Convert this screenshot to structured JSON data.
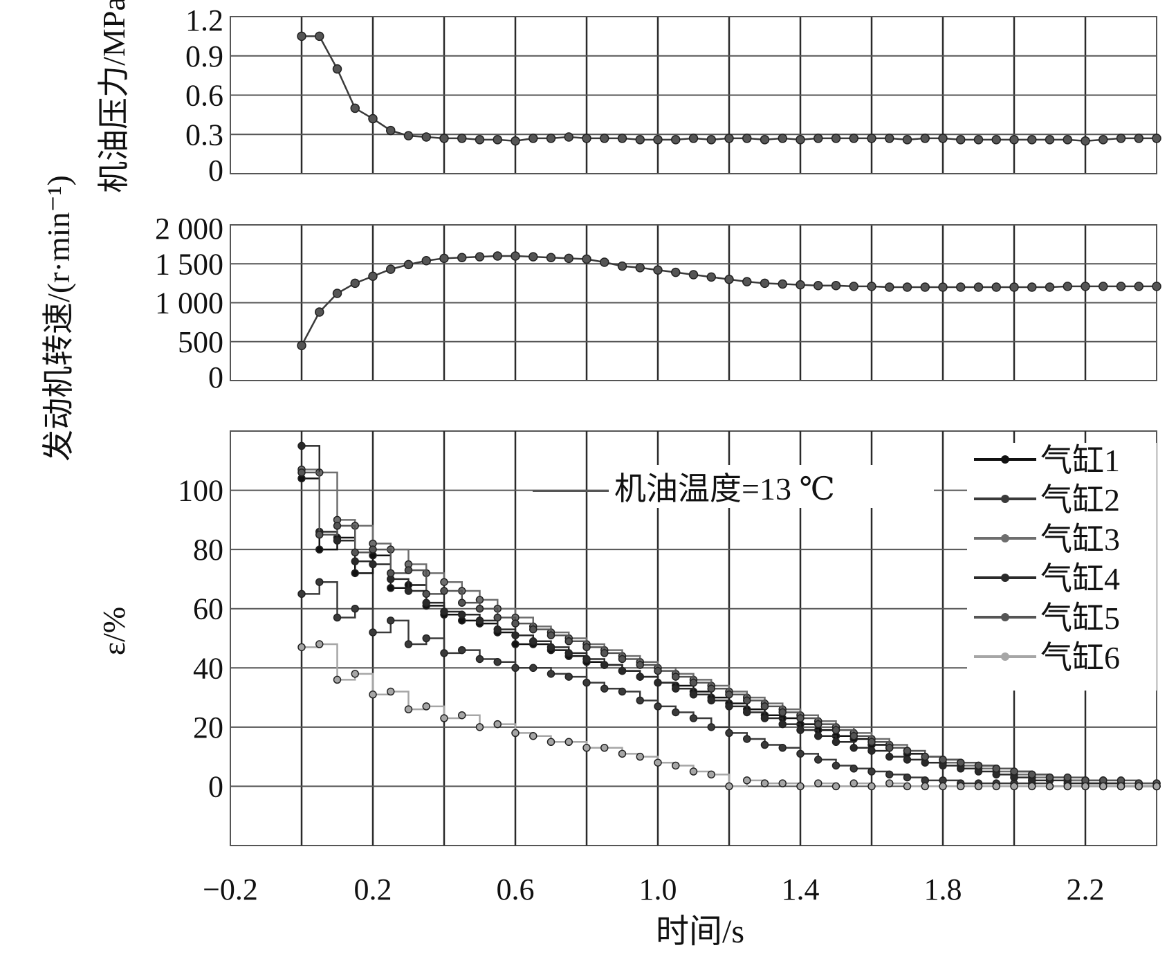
{
  "chart_data": [
    {
      "type": "line",
      "ylabel": "机油压力/MPa",
      "ylim": [
        0,
        1.2
      ],
      "yticks": [
        "0",
        "0.3",
        "0.6",
        "0.9",
        "1.2"
      ],
      "ytick_values": [
        0,
        0.3,
        0.6,
        0.9,
        1.2
      ],
      "xlim": [
        -0.2,
        2.4
      ],
      "grid": true,
      "series": [
        {
          "x": [
            0.0,
            0.05,
            0.1,
            0.15,
            0.2,
            0.25,
            0.3,
            0.35,
            0.4,
            0.45,
            0.5,
            0.55,
            0.6,
            0.65,
            0.7,
            0.75,
            0.8,
            0.85,
            0.9,
            0.95,
            1.0,
            1.05,
            1.1,
            1.15,
            1.2,
            1.25,
            1.3,
            1.35,
            1.4,
            1.45,
            1.5,
            1.55,
            1.6,
            1.65,
            1.7,
            1.75,
            1.8,
            1.85,
            1.9,
            1.95,
            2.0,
            2.05,
            2.1,
            2.15,
            2.2,
            2.25,
            2.3,
            2.35,
            2.4
          ],
          "y": [
            1.05,
            1.05,
            0.8,
            0.5,
            0.42,
            0.33,
            0.29,
            0.28,
            0.27,
            0.27,
            0.26,
            0.26,
            0.25,
            0.27,
            0.27,
            0.28,
            0.27,
            0.27,
            0.27,
            0.26,
            0.26,
            0.26,
            0.27,
            0.26,
            0.27,
            0.27,
            0.26,
            0.27,
            0.26,
            0.27,
            0.27,
            0.27,
            0.27,
            0.27,
            0.26,
            0.27,
            0.27,
            0.26,
            0.26,
            0.26,
            0.26,
            0.26,
            0.26,
            0.26,
            0.25,
            0.26,
            0.27,
            0.27,
            0.27
          ]
        }
      ]
    },
    {
      "type": "line",
      "ylabel": "发动机转速/(r·min⁻¹)",
      "ylim": [
        0,
        2000
      ],
      "yticks": [
        "0",
        "500",
        "1 000",
        "1 500",
        "2 000"
      ],
      "ytick_values": [
        0,
        500,
        1000,
        1500,
        2000
      ],
      "xlim": [
        -0.2,
        2.4
      ],
      "grid": true,
      "series": [
        {
          "x": [
            0.0,
            0.05,
            0.1,
            0.15,
            0.2,
            0.25,
            0.3,
            0.35,
            0.4,
            0.45,
            0.5,
            0.55,
            0.6,
            0.65,
            0.7,
            0.75,
            0.8,
            0.85,
            0.9,
            0.95,
            1.0,
            1.05,
            1.1,
            1.15,
            1.2,
            1.25,
            1.3,
            1.35,
            1.4,
            1.45,
            1.5,
            1.55,
            1.6,
            1.65,
            1.7,
            1.75,
            1.8,
            1.85,
            1.9,
            1.95,
            2.0,
            2.05,
            2.1,
            2.15,
            2.2,
            2.25,
            2.3,
            2.35,
            2.4
          ],
          "y": [
            450,
            880,
            1120,
            1250,
            1340,
            1430,
            1490,
            1540,
            1570,
            1580,
            1590,
            1600,
            1600,
            1590,
            1580,
            1570,
            1560,
            1520,
            1470,
            1450,
            1420,
            1390,
            1360,
            1330,
            1300,
            1270,
            1250,
            1240,
            1230,
            1220,
            1220,
            1210,
            1210,
            1200,
            1200,
            1200,
            1200,
            1200,
            1200,
            1200,
            1200,
            1200,
            1200,
            1210,
            1210,
            1210,
            1210,
            1210,
            1210
          ]
        }
      ]
    },
    {
      "type": "line",
      "ylabel": "ε/%",
      "xlabel": "时间/s",
      "ylim": [
        -20,
        120
      ],
      "yticks": [
        "0",
        "20",
        "40",
        "60",
        "80",
        "100"
      ],
      "ytick_values": [
        0,
        20,
        40,
        60,
        80,
        100
      ],
      "xlim": [
        -0.2,
        2.4
      ],
      "xticks": [
        "−0.2",
        "0.2",
        "0.6",
        "1.0",
        "1.4",
        "1.8",
        "2.2"
      ],
      "xtick_values": [
        -0.2,
        0.2,
        0.6,
        1.0,
        1.4,
        1.8,
        2.2
      ],
      "grid": true,
      "legend_position": "top-right",
      "annotation": "机油温度=13 ℃",
      "series": [
        {
          "name": "气缸1",
          "color": "#111111",
          "x": [
            0.0,
            0.05,
            0.1,
            0.15,
            0.2,
            0.25,
            0.3,
            0.35,
            0.4,
            0.45,
            0.5,
            0.55,
            0.6,
            0.65,
            0.7,
            0.75,
            0.8,
            0.85,
            0.9,
            0.95,
            1.0,
            1.05,
            1.1,
            1.15,
            1.2,
            1.25,
            1.3,
            1.35,
            1.4,
            1.45,
            1.5,
            1.55,
            1.6,
            1.65,
            1.7,
            1.75,
            1.8,
            1.85,
            1.9,
            1.95,
            2.0,
            2.05,
            2.1,
            2.15,
            2.2,
            2.25,
            2.3,
            2.35,
            2.4
          ],
          "y": [
            104,
            80,
            84,
            72,
            78,
            67,
            68,
            61,
            58,
            56,
            55,
            52,
            48,
            48,
            46,
            44,
            42,
            41,
            39,
            37,
            35,
            34,
            32,
            30,
            28,
            26,
            24,
            23,
            21,
            19,
            17,
            16,
            14,
            13,
            11,
            10,
            9,
            8,
            7,
            6,
            5,
            4,
            3,
            2,
            1,
            1,
            0,
            0,
            0
          ]
        },
        {
          "name": "气缸2",
          "color": "#3a3a3a",
          "x": [
            0.0,
            0.05,
            0.1,
            0.15,
            0.2,
            0.25,
            0.3,
            0.35,
            0.4,
            0.45,
            0.5,
            0.55,
            0.6,
            0.65,
            0.7,
            0.75,
            0.8,
            0.85,
            0.9,
            0.95,
            1.0,
            1.05,
            1.1,
            1.15,
            1.2,
            1.25,
            1.3,
            1.35,
            1.4,
            1.45,
            1.5,
            1.55,
            1.6,
            1.65,
            1.7,
            1.75,
            1.8,
            1.85,
            1.9,
            1.95,
            2.0,
            2.05,
            2.1,
            2.15,
            2.2,
            2.25,
            2.3,
            2.35,
            2.4
          ],
          "y": [
            65,
            69,
            57,
            60,
            52,
            56,
            48,
            50,
            45,
            46,
            43,
            42,
            40,
            40,
            38,
            37,
            35,
            33,
            32,
            29,
            27,
            25,
            23,
            20,
            18,
            16,
            14,
            13,
            11,
            9,
            7,
            6,
            5,
            4,
            3,
            2,
            2,
            1,
            1,
            1,
            1,
            1,
            0,
            0,
            0,
            0,
            0,
            0,
            0
          ]
        },
        {
          "name": "气缸3",
          "color": "#6e6e6e",
          "x": [
            0.0,
            0.05,
            0.1,
            0.15,
            0.2,
            0.25,
            0.3,
            0.35,
            0.4,
            0.45,
            0.5,
            0.55,
            0.6,
            0.65,
            0.7,
            0.75,
            0.8,
            0.85,
            0.9,
            0.95,
            1.0,
            1.05,
            1.1,
            1.15,
            1.2,
            1.25,
            1.3,
            1.35,
            1.4,
            1.45,
            1.5,
            1.55,
            1.6,
            1.65,
            1.7,
            1.75,
            1.8,
            1.85,
            1.9,
            1.95,
            2.0,
            2.05,
            2.1,
            2.15,
            2.2,
            2.25,
            2.3,
            2.35,
            2.4
          ],
          "y": [
            107,
            106,
            90,
            88,
            82,
            80,
            75,
            72,
            69,
            66,
            63,
            60,
            57,
            54,
            52,
            50,
            48,
            46,
            44,
            42,
            40,
            38,
            36,
            34,
            32,
            30,
            28,
            26,
            24,
            22,
            20,
            18,
            16,
            14,
            12,
            10,
            8,
            7,
            6,
            5,
            4,
            3,
            3,
            2,
            2,
            2,
            1,
            1,
            1
          ]
        },
        {
          "name": "气缸4",
          "color": "#2a2a2a",
          "x": [
            0.0,
            0.05,
            0.1,
            0.15,
            0.2,
            0.25,
            0.3,
            0.35,
            0.4,
            0.45,
            0.5,
            0.55,
            0.6,
            0.65,
            0.7,
            0.75,
            0.8,
            0.85,
            0.9,
            0.95,
            1.0,
            1.05,
            1.1,
            1.15,
            1.2,
            1.25,
            1.3,
            1.35,
            1.4,
            1.45,
            1.5,
            1.55,
            1.6,
            1.65,
            1.7,
            1.75,
            1.8,
            1.85,
            1.9,
            1.95,
            2.0,
            2.05,
            2.1,
            2.15,
            2.2,
            2.25,
            2.3,
            2.35,
            2.4
          ],
          "y": [
            115,
            86,
            83,
            76,
            75,
            70,
            66,
            62,
            59,
            58,
            56,
            53,
            51,
            49,
            47,
            45,
            43,
            41,
            39,
            37,
            35,
            33,
            31,
            29,
            27,
            25,
            23,
            21,
            19,
            17,
            15,
            13,
            12,
            10,
            9,
            8,
            7,
            6,
            5,
            4,
            3,
            2,
            2,
            1,
            1,
            1,
            0,
            0,
            0
          ]
        },
        {
          "name": "气缸5",
          "color": "#555555",
          "x": [
            0.0,
            0.05,
            0.1,
            0.15,
            0.2,
            0.25,
            0.3,
            0.35,
            0.4,
            0.45,
            0.5,
            0.55,
            0.6,
            0.65,
            0.7,
            0.75,
            0.8,
            0.85,
            0.9,
            0.95,
            1.0,
            1.05,
            1.1,
            1.15,
            1.2,
            1.25,
            1.3,
            1.35,
            1.4,
            1.45,
            1.5,
            1.55,
            1.6,
            1.65,
            1.7,
            1.75,
            1.8,
            1.85,
            1.9,
            1.95,
            2.0,
            2.05,
            2.1,
            2.15,
            2.2,
            2.25,
            2.3,
            2.35,
            2.4
          ],
          "y": [
            106,
            85,
            88,
            79,
            80,
            72,
            73,
            65,
            66,
            62,
            60,
            57,
            55,
            53,
            51,
            49,
            47,
            45,
            43,
            41,
            39,
            37,
            35,
            33,
            31,
            29,
            27,
            25,
            23,
            21,
            19,
            17,
            15,
            13,
            12,
            10,
            9,
            8,
            7,
            6,
            5,
            4,
            3,
            3,
            2,
            2,
            2,
            1,
            1
          ]
        },
        {
          "name": "气缸6",
          "color": "#a6a6a6",
          "x": [
            0.0,
            0.05,
            0.1,
            0.15,
            0.2,
            0.25,
            0.3,
            0.35,
            0.4,
            0.45,
            0.5,
            0.55,
            0.6,
            0.65,
            0.7,
            0.75,
            0.8,
            0.85,
            0.9,
            0.95,
            1.0,
            1.05,
            1.1,
            1.15,
            1.2,
            1.25,
            1.3,
            1.35,
            1.4,
            1.45,
            1.5,
            1.55,
            1.6,
            1.65,
            1.7,
            1.75,
            1.8,
            1.85,
            1.9,
            1.95,
            2.0,
            2.05,
            2.1,
            2.15,
            2.2,
            2.25,
            2.3,
            2.35,
            2.4
          ],
          "y": [
            47,
            48,
            36,
            38,
            31,
            32,
            26,
            27,
            23,
            24,
            20,
            21,
            18,
            17,
            15,
            15,
            13,
            13,
            11,
            10,
            8,
            7,
            5,
            4,
            0,
            2,
            1,
            1,
            0,
            1,
            0,
            1,
            0,
            1,
            0,
            0,
            0,
            0,
            0,
            0,
            0,
            0,
            0,
            0,
            0,
            0,
            0,
            0,
            0
          ]
        }
      ]
    }
  ]
}
